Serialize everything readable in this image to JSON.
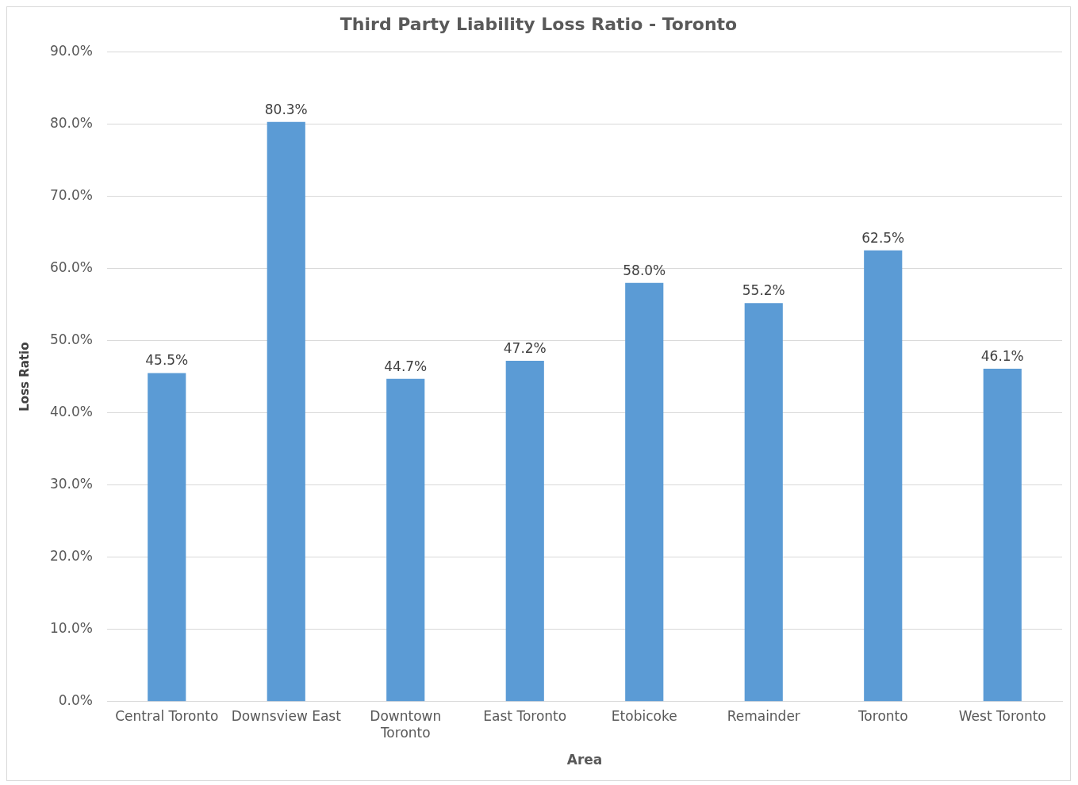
{
  "chart_data": {
    "type": "bar",
    "title": "Third Party Liability Loss Ratio - Toronto",
    "xlabel": "Area",
    "ylabel": "Loss Ratio",
    "categories": [
      "Central Toronto",
      "Downsview East",
      "Downtown Toronto",
      "East Toronto",
      "Etobicoke",
      "Remainder",
      "Toronto",
      "West Toronto"
    ],
    "values": [
      45.5,
      80.3,
      44.7,
      47.2,
      58.0,
      55.2,
      62.5,
      46.1
    ],
    "value_labels": [
      "45.5%",
      "80.3%",
      "44.7%",
      "47.2%",
      "58.0%",
      "55.2%",
      "62.5%",
      "46.1%"
    ],
    "color": "#5b9bd5",
    "ylim": [
      0,
      90
    ],
    "yticks": [
      {
        "value": 0,
        "label": "0.0%"
      },
      {
        "value": 10,
        "label": "10.0%"
      },
      {
        "value": 20,
        "label": "20.0%"
      },
      {
        "value": 30,
        "label": "30.0%"
      },
      {
        "value": 40,
        "label": "40.0%"
      },
      {
        "value": 50,
        "label": "50.0%"
      },
      {
        "value": 60,
        "label": "60.0%"
      },
      {
        "value": 70,
        "label": "70.0%"
      },
      {
        "value": 80,
        "label": "80.0%"
      },
      {
        "value": 90,
        "label": "90.0%"
      }
    ],
    "grid": "y",
    "legend": false
  }
}
